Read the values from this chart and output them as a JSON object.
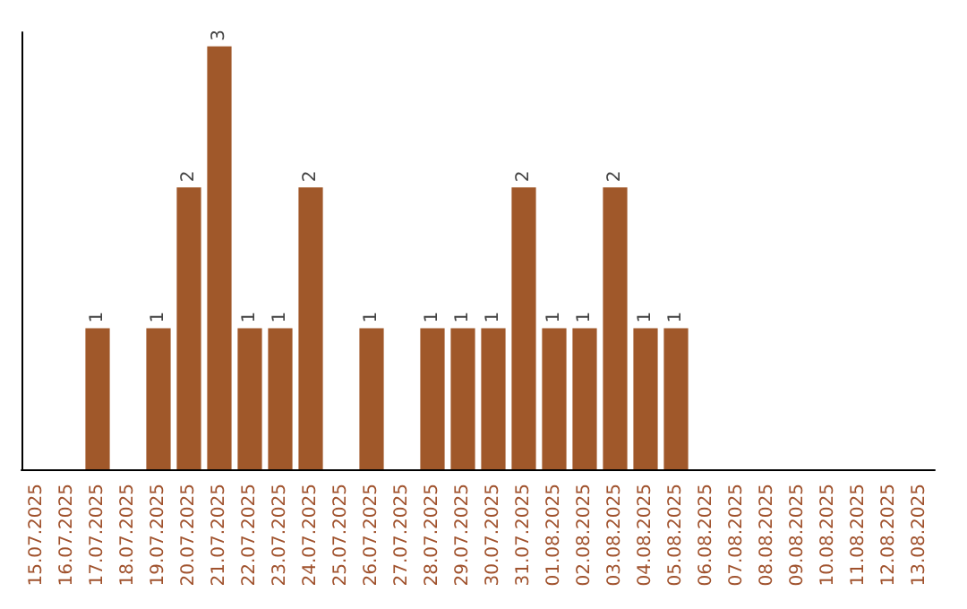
{
  "chart_data": {
    "type": "bar",
    "categories": [
      "15.07.2025",
      "16.07.2025",
      "17.07.2025",
      "18.07.2025",
      "19.07.2025",
      "20.07.2025",
      "21.07.2025",
      "22.07.2025",
      "23.07.2025",
      "24.07.2025",
      "25.07.2025",
      "26.07.2025",
      "27.07.2025",
      "28.07.2025",
      "29.07.2025",
      "30.07.2025",
      "31.07.2025",
      "01.08.2025",
      "02.08.2025",
      "03.08.2025",
      "04.08.2025",
      "05.08.2025",
      "06.08.2025",
      "07.08.2025",
      "08.08.2025",
      "09.08.2025",
      "10.08.2025",
      "11.08.2025",
      "12.08.2025",
      "13.08.2025"
    ],
    "values": [
      0,
      0,
      1,
      0,
      1,
      2,
      3,
      1,
      1,
      2,
      0,
      1,
      0,
      1,
      1,
      1,
      2,
      1,
      1,
      2,
      1,
      1,
      0,
      0,
      0,
      0,
      0,
      0,
      0,
      0
    ],
    "value_labels": [
      null,
      null,
      "1",
      null,
      "1",
      "2",
      "3",
      "1",
      "1",
      "2",
      null,
      "1",
      null,
      "1",
      "1",
      "1",
      "2",
      "1",
      "1",
      "2",
      "1",
      "1",
      null,
      null,
      null,
      null,
      null,
      null,
      null,
      null
    ],
    "color": "#a0582a",
    "ylim": [
      0,
      3.1
    ],
    "tick_labels": "x"
  }
}
